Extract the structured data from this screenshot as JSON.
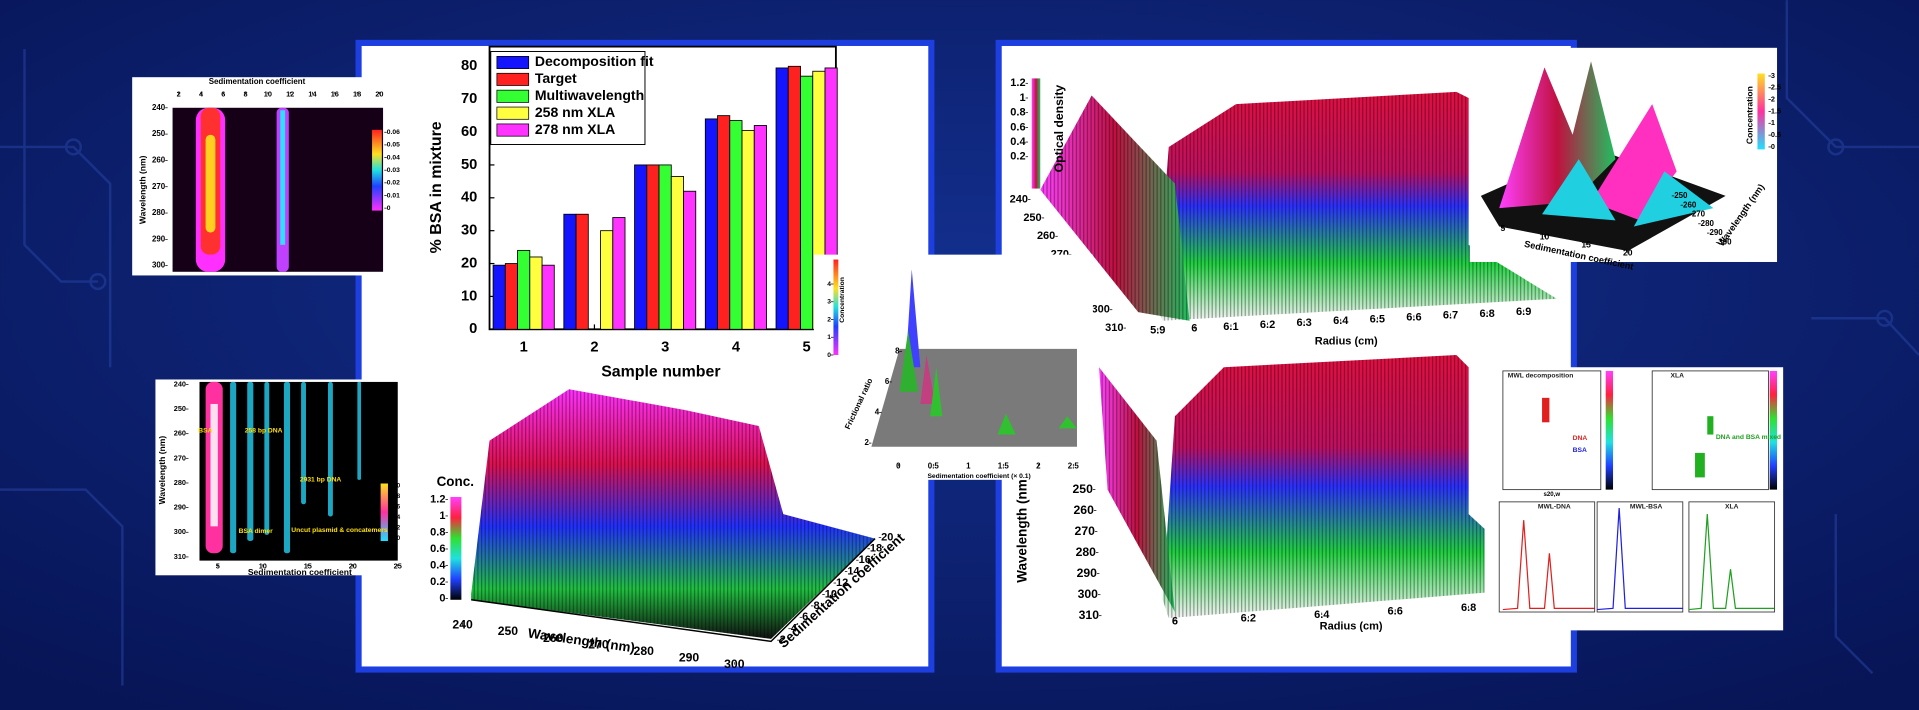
{
  "chart_data": [
    {
      "type": "bar",
      "xlabel": "Sample number",
      "ylabel": "% BSA in mixture",
      "legend": "upper left",
      "categories": [
        "1",
        "2",
        "3",
        "4",
        "5"
      ],
      "series": [
        {
          "name": "Decomposition fit",
          "color": "#1414ff",
          "values": [
            19.5,
            35,
            50,
            64,
            79.5
          ]
        },
        {
          "name": "Target",
          "color": "#ff2020",
          "values": [
            20,
            35,
            50,
            65,
            80
          ]
        },
        {
          "name": "Multiwavelength",
          "color": "#33ff33",
          "values": [
            24,
            null,
            50,
            63.5,
            77
          ]
        },
        {
          "name": "258 nm XLA",
          "color": "#ffff40",
          "values": [
            22,
            30,
            46.5,
            60.5,
            78.5
          ]
        },
        {
          "name": "278 nm XLA",
          "color": "#ff33ff",
          "values": [
            19.5,
            34,
            42,
            62,
            79.5
          ]
        }
      ],
      "ylim": [
        0,
        86
      ],
      "yticks": [
        0,
        10,
        20,
        30,
        40,
        50,
        60,
        70,
        80
      ]
    },
    {
      "type": "heatmap",
      "title": "Sedimentation coefficient",
      "ylabel": "Wavelength (nm)",
      "xlim": [
        2,
        20
      ],
      "xticks": [
        2,
        4,
        6,
        8,
        10,
        12,
        14,
        16,
        18,
        20
      ],
      "ylim": [
        240,
        300
      ],
      "yticks": [
        240,
        250,
        260,
        270,
        280,
        290,
        300
      ],
      "clim": [
        0,
        0.06
      ],
      "cticks": [
        0,
        0.01,
        0.02,
        0.03,
        0.04,
        0.05,
        0.06
      ]
    },
    {
      "type": "heatmap",
      "xlabel": "Sedimentation coefficient",
      "ylabel": "Wavelength (nm)",
      "xlim": [
        5,
        25
      ],
      "xticks": [
        5,
        10,
        15,
        20,
        25
      ],
      "ylim": [
        240,
        310
      ],
      "yticks": [
        240,
        250,
        260,
        270,
        280,
        290,
        300,
        310
      ],
      "clim": [
        0,
        1
      ],
      "cticks": [
        {
          "value": 0,
          "label": "0.0"
        },
        0.2,
        0.4,
        0.6,
        0.8,
        {
          "value": 1,
          "label": "1.0"
        }
      ],
      "annotations": [
        "BSA",
        "258 bp DNA",
        "2931 bp DNA",
        "BSA dimer",
        "Uncut plasmid & concatemers"
      ]
    },
    {
      "type": "surface",
      "zlabel": "Conc.",
      "xlabel": "Wavelength (nm)",
      "ylabel": "Sedimentation coefficient",
      "zlim": [
        0,
        1.2
      ],
      "zticks": [
        0,
        0.2,
        0.4,
        0.6,
        0.8,
        1,
        1.2
      ],
      "xlim": [
        240,
        300
      ],
      "xticks": [
        240,
        250,
        260,
        270,
        280,
        290,
        300
      ],
      "ylim": [
        2,
        20
      ],
      "yticks": [
        2,
        4,
        6,
        8,
        10,
        12,
        14,
        16,
        18,
        20
      ]
    },
    {
      "type": "surface",
      "zlabel": "Concentration",
      "ylabel": "Frictional ratio",
      "xlabel": "Sedimentation coefficient (× 0.1)",
      "zlim": [
        0,
        4
      ],
      "zticks": [
        0,
        1,
        2,
        3,
        4
      ],
      "ylim": [
        2,
        8
      ],
      "yticks": [
        2,
        4,
        6,
        8
      ],
      "xlim": [
        0,
        2.5
      ],
      "xticks": [
        0,
        0.5,
        1,
        1.5,
        2,
        2.5
      ]
    },
    {
      "type": "surface",
      "zlabel": "Optical density",
      "xlabel": "Radius (cm)",
      "zlim": [
        0.2,
        1.2
      ],
      "zticks": [
        0.2,
        0.4,
        0.6,
        0.8,
        1,
        1.2
      ],
      "ylim": [
        240,
        310
      ],
      "yticks": [
        240,
        250,
        260,
        270,
        300,
        310
      ],
      "xlim": [
        5.9,
        6.9
      ],
      "xticks": [
        5.9,
        6,
        6.1,
        6.2,
        6.3,
        6.4,
        6.5,
        6.6,
        6.7,
        6.8,
        6.9
      ]
    },
    {
      "type": "surface",
      "ylabel": "Wavelength (nm)",
      "xlabel": "Radius (cm)",
      "ylim": [
        250,
        310
      ],
      "yticks": [
        250,
        260,
        270,
        280,
        290,
        300,
        310
      ],
      "xlim": [
        6,
        6.8
      ],
      "xticks": [
        6,
        6.2,
        6.4,
        6.6,
        6.8
      ]
    },
    {
      "type": "surface",
      "zlabel": "Concentration",
      "xlabel": "Sedimentation coefficient",
      "ylabel": "Wavelength (nm)",
      "zlim": [
        0,
        3
      ],
      "zticks": [
        0,
        0.5,
        1,
        1.5,
        2,
        2.5,
        3
      ],
      "xlim": [
        5,
        20
      ],
      "xticks": [
        5,
        10,
        15,
        20
      ],
      "ylim": [
        250,
        300
      ],
      "yticks": [
        250,
        260,
        270,
        280,
        290,
        300
      ]
    },
    {
      "type": "panels",
      "titles": [
        "MWL decomposition",
        "XLA",
        "MWL-DNA",
        "MWL-BSA",
        "XLA"
      ],
      "annotations": [
        "DNA",
        "BSA",
        "DNA and BSA mixed"
      ],
      "xlabel": "s20,w"
    }
  ]
}
